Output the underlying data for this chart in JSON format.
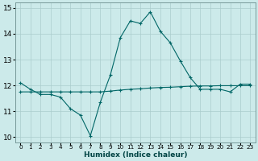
{
  "xlabel": "Humidex (Indice chaleur)",
  "background_color": "#cceaea",
  "grid_color": "#aacccc",
  "line_color": "#006666",
  "x_values": [
    0,
    1,
    2,
    3,
    4,
    5,
    6,
    7,
    8,
    9,
    10,
    11,
    12,
    13,
    14,
    15,
    16,
    17,
    18,
    19,
    20,
    21,
    22,
    23
  ],
  "y_main": [
    12.1,
    11.85,
    11.65,
    11.65,
    11.55,
    11.1,
    10.85,
    10.05,
    11.35,
    12.4,
    13.85,
    14.5,
    14.4,
    14.85,
    14.1,
    13.65,
    12.95,
    12.3,
    11.85,
    11.85,
    11.85,
    11.75,
    12.05,
    12.05
  ],
  "y_flat": [
    11.75,
    11.75,
    11.75,
    11.75,
    11.75,
    11.75,
    11.75,
    11.75,
    11.75,
    11.78,
    11.82,
    11.85,
    11.87,
    11.9,
    11.92,
    11.93,
    11.95,
    11.97,
    11.98,
    11.98,
    11.99,
    11.99,
    11.99,
    11.99
  ],
  "ylim": [
    9.8,
    15.2
  ],
  "yticks": [
    10,
    11,
    12,
    13,
    14,
    15
  ],
  "xticks": [
    0,
    1,
    2,
    3,
    4,
    5,
    6,
    7,
    8,
    9,
    10,
    11,
    12,
    13,
    14,
    15,
    16,
    17,
    18,
    19,
    20,
    21,
    22,
    23
  ],
  "marker": "+",
  "marker_size": 3.5,
  "line_width": 0.8
}
